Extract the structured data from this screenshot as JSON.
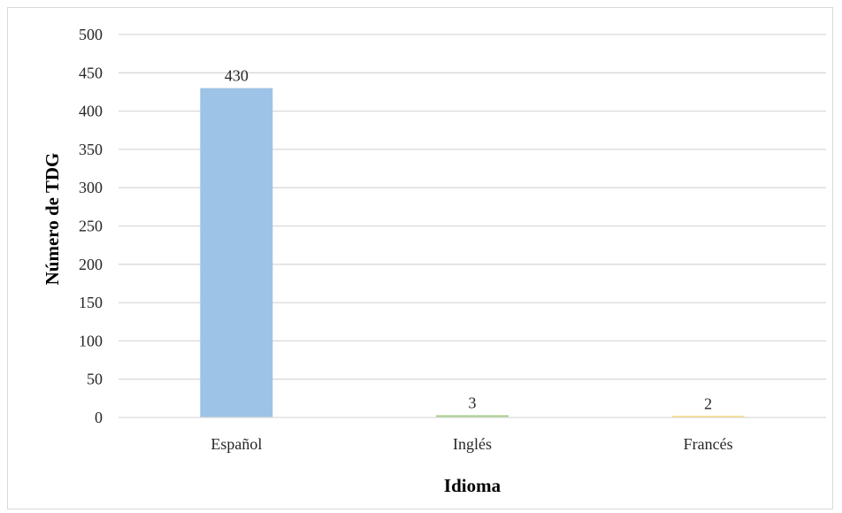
{
  "chart_data": {
    "type": "bar",
    "categories": [
      "Español",
      "Inglés",
      "Francés"
    ],
    "values": [
      430,
      3,
      2
    ],
    "data_labels": [
      "430",
      "3",
      "2"
    ],
    "colors": [
      "#9dc3e6",
      "#a9d18e",
      "#ffd966"
    ],
    "title": "",
    "xlabel": "Idioma",
    "ylabel": "Número de TDG",
    "ylim": [
      0,
      500
    ],
    "yticks": [
      "0",
      "50",
      "100",
      "150",
      "200",
      "250",
      "300",
      "350",
      "400",
      "450",
      "500"
    ],
    "grid": true,
    "grid_color": "#d9d9d9",
    "legend": "none"
  }
}
